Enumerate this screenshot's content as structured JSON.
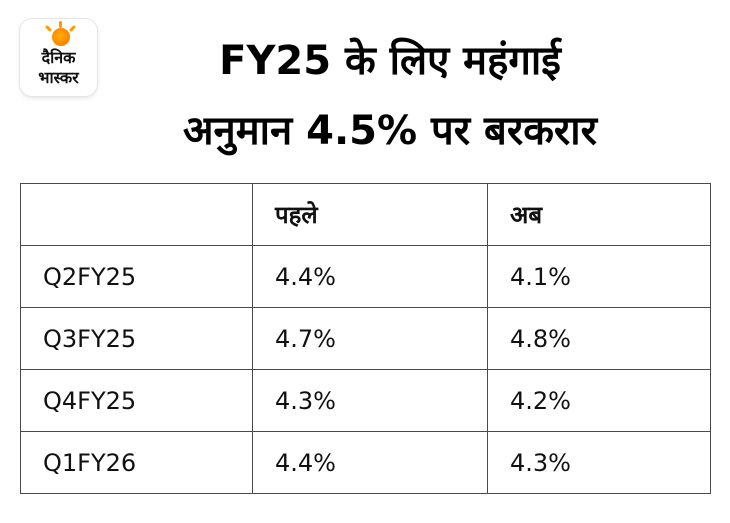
{
  "logo": {
    "line1": "दैनिक",
    "line2": "भास्कर"
  },
  "chart_data": {
    "type": "table",
    "title_line1": "FY25 के लिए महंगाई",
    "title_line2": "अनुमान 4.5% पर बरकरार",
    "columns": [
      "",
      "पहले",
      "अब"
    ],
    "rows": [
      [
        "Q2FY25",
        "4.4%",
        "4.1%"
      ],
      [
        "Q3FY25",
        "4.7%",
        "4.8%"
      ],
      [
        "Q4FY25",
        "4.3%",
        "4.2%"
      ],
      [
        "Q1FY26",
        "4.4%",
        "4.3%"
      ]
    ]
  }
}
